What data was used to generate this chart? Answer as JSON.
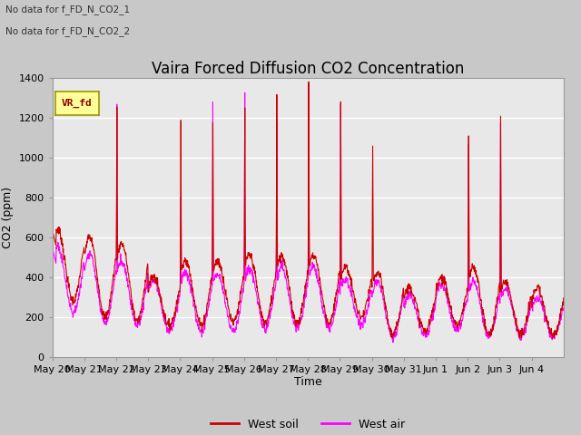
{
  "title": "Vaira Forced Diffusion CO2 Concentration",
  "ylabel": "CO2 (ppm)",
  "xlabel": "Time",
  "ylim": [
    0,
    1400
  ],
  "plot_bg_color": "#e8e8e8",
  "fig_bg_color": "#c8c8c8",
  "no_data_text_1": "No data for f_FD_N_CO2_1",
  "no_data_text_2": "No data for f_FD_N_CO2_2",
  "legend_label_box": "VR_fd",
  "legend_line1_label": "West soil",
  "legend_line2_label": "West air",
  "legend_line1_color": "#cc0000",
  "legend_line2_color": "#ff00ff",
  "x_tick_labels": [
    "May 20",
    "May 21",
    "May 22",
    "May 23",
    "May 24",
    "May 25",
    "May 26",
    "May 27",
    "May 28",
    "May 29",
    "May 30",
    "May 31",
    "Jun 1",
    "Jun 2",
    "Jun 3",
    "Jun 4"
  ],
  "n_days": 16,
  "title_fontsize": 12,
  "tick_fontsize": 8,
  "label_fontsize": 9,
  "yticks": [
    0,
    200,
    400,
    600,
    800,
    1000,
    1200,
    1400
  ]
}
